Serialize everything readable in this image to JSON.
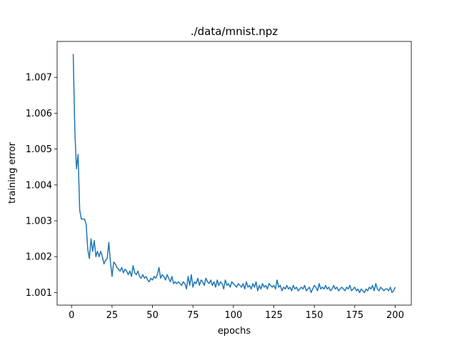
{
  "chart_data": {
    "type": "line",
    "title": "./data/mnist.npz",
    "xlabel": "epochs",
    "ylabel": "training error",
    "x": [
      1,
      2,
      3,
      4,
      5,
      6,
      7,
      8,
      9,
      10,
      11,
      12,
      13,
      14,
      15,
      16,
      17,
      18,
      19,
      20,
      21,
      22,
      23,
      24,
      25,
      26,
      27,
      28,
      29,
      30,
      31,
      32,
      33,
      34,
      35,
      36,
      37,
      38,
      39,
      40,
      41,
      42,
      43,
      44,
      45,
      46,
      47,
      48,
      49,
      50,
      51,
      52,
      53,
      54,
      55,
      56,
      57,
      58,
      59,
      60,
      61,
      62,
      63,
      64,
      65,
      66,
      67,
      68,
      69,
      70,
      71,
      72,
      73,
      74,
      75,
      76,
      77,
      78,
      79,
      80,
      81,
      82,
      83,
      84,
      85,
      86,
      87,
      88,
      89,
      90,
      91,
      92,
      93,
      94,
      95,
      96,
      97,
      98,
      99,
      100,
      101,
      102,
      103,
      104,
      105,
      106,
      107,
      108,
      109,
      110,
      111,
      112,
      113,
      114,
      115,
      116,
      117,
      118,
      119,
      120,
      121,
      122,
      123,
      124,
      125,
      126,
      127,
      128,
      129,
      130,
      131,
      132,
      133,
      134,
      135,
      136,
      137,
      138,
      139,
      140,
      141,
      142,
      143,
      144,
      145,
      146,
      147,
      148,
      149,
      150,
      151,
      152,
      153,
      154,
      155,
      156,
      157,
      158,
      159,
      160,
      161,
      162,
      163,
      164,
      165,
      166,
      167,
      168,
      169,
      170,
      171,
      172,
      173,
      174,
      175,
      176,
      177,
      178,
      179,
      180,
      181,
      182,
      183,
      184,
      185,
      186,
      187,
      188,
      189,
      190,
      191,
      192,
      193,
      194,
      195,
      196,
      197,
      198,
      199,
      200
    ],
    "series": [
      {
        "name": "training error",
        "color": "#1f77b4",
        "values": [
          1.00765,
          1.0055,
          1.00445,
          1.00485,
          1.0033,
          1.00305,
          1.00305,
          1.00305,
          1.0029,
          1.0022,
          1.00195,
          1.0025,
          1.00215,
          1.00245,
          1.002,
          1.00215,
          1.002,
          1.00215,
          1.002,
          1.0018,
          1.0019,
          1.00195,
          1.0024,
          1.00185,
          1.00145,
          1.00185,
          1.0018,
          1.0017,
          1.00165,
          1.0016,
          1.0017,
          1.00155,
          1.00165,
          1.0016,
          1.0015,
          1.0016,
          1.00145,
          1.00175,
          1.00155,
          1.0015,
          1.0016,
          1.00145,
          1.0014,
          1.0015,
          1.0014,
          1.00145,
          1.00135,
          1.0013,
          1.0014,
          1.00135,
          1.00145,
          1.0014,
          1.0015,
          1.0017,
          1.0014,
          1.0015,
          1.00145,
          1.00135,
          1.0015,
          1.0014,
          1.0013,
          1.00145,
          1.00125,
          1.0013,
          1.00125,
          1.0013,
          1.00125,
          1.0012,
          1.0013,
          1.00125,
          1.0011,
          1.00145,
          1.0012,
          1.0015,
          1.00115,
          1.0013,
          1.00125,
          1.0014,
          1.0012,
          1.00135,
          1.0013,
          1.0012,
          1.0014,
          1.0013,
          1.00125,
          1.00135,
          1.0012,
          1.0013,
          1.00115,
          1.00135,
          1.0012,
          1.0013,
          1.00125,
          1.0011,
          1.00135,
          1.0012,
          1.00125,
          1.00115,
          1.0013,
          1.00125,
          1.0012,
          1.00115,
          1.00125,
          1.0012,
          1.00115,
          1.00125,
          1.0011,
          1.0013,
          1.00115,
          1.0012,
          1.0011,
          1.00125,
          1.00115,
          1.0013,
          1.00105,
          1.0012,
          1.0011,
          1.00125,
          1.00115,
          1.0012,
          1.0011,
          1.00125,
          1.0012,
          1.00115,
          1.0012,
          1.0011,
          1.00135,
          1.00115,
          1.0012,
          1.00105,
          1.00115,
          1.0011,
          1.0012,
          1.0011,
          1.00115,
          1.00105,
          1.0012,
          1.0011,
          1.00115,
          1.00105,
          1.0011,
          1.00115,
          1.0011,
          1.0012,
          1.00105,
          1.0011,
          1.00115,
          1.001,
          1.0011,
          1.0012,
          1.00115,
          1.00105,
          1.00125,
          1.0011,
          1.00115,
          1.0011,
          1.0012,
          1.0011,
          1.00115,
          1.00105,
          1.0011,
          1.0012,
          1.0011,
          1.00115,
          1.00105,
          1.0011,
          1.00115,
          1.0011,
          1.00105,
          1.00115,
          1.0011,
          1.0012,
          1.00105,
          1.0011,
          1.00115,
          1.00105,
          1.0011,
          1.001,
          1.0011,
          1.00105,
          1.001,
          1.0011,
          1.00105,
          1.00115,
          1.0011,
          1.0012,
          1.00105,
          1.00125,
          1.0011,
          1.00105,
          1.00115,
          1.0011,
          1.00105,
          1.0011,
          1.0011,
          1.00105,
          1.00115,
          1.001,
          1.00105,
          1.00115
        ]
      }
    ],
    "xlim": [
      -8.95,
      209.95
    ],
    "xticks": [
      0,
      25,
      50,
      75,
      100,
      125,
      150,
      175,
      200
    ],
    "ylim": [
      1.00065,
      1.008
    ],
    "yticks": [
      1.001,
      1.002,
      1.003,
      1.004,
      1.005,
      1.006,
      1.007
    ]
  }
}
